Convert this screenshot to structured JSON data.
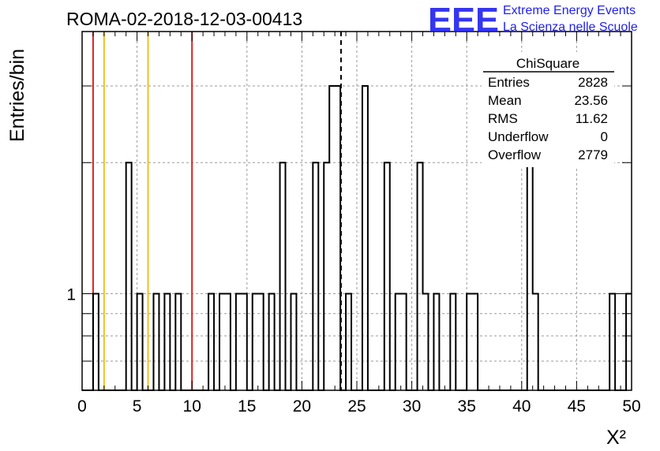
{
  "header": {
    "run_title": "ROMA-02-2018-12-03-00413",
    "logo_mark": "EEE",
    "logo_line1": "Extreme Energy Events",
    "logo_line2": "La Scienza nelle Scuole",
    "logo_color": "#1f1ff0"
  },
  "stats_box": {
    "title": "ChiSquare",
    "rows": [
      {
        "label": "Entries",
        "value": "2828"
      },
      {
        "label": "Mean",
        "value": "23.56"
      },
      {
        "label": "RMS",
        "value": "11.62"
      },
      {
        "label": "Underflow",
        "value": "0"
      },
      {
        "label": "Overflow",
        "value": "2779"
      }
    ]
  },
  "chart_data": {
    "type": "bar",
    "title": "ROMA-02-2018-12-03-00413",
    "xlabel": "X²",
    "ylabel": "Entries/bin",
    "xlim": [
      0,
      50
    ],
    "ylim": [
      0.6,
      4
    ],
    "yscale": "log",
    "grid": true,
    "bin_width": 0.5,
    "x_ticks": [
      "0",
      "5",
      "10",
      "15",
      "20",
      "25",
      "30",
      "35",
      "40",
      "45",
      "50"
    ],
    "y_tick_labels": [
      {
        "value": 1,
        "label": "1"
      }
    ],
    "bins": [
      {
        "x0": 1.0,
        "count": 1
      },
      {
        "x0": 4.0,
        "count": 2
      },
      {
        "x0": 5.0,
        "count": 1
      },
      {
        "x0": 6.5,
        "count": 1
      },
      {
        "x0": 7.5,
        "count": 1
      },
      {
        "x0": 8.5,
        "count": 1
      },
      {
        "x0": 11.5,
        "count": 1
      },
      {
        "x0": 12.5,
        "count": 1
      },
      {
        "x0": 13.0,
        "count": 1
      },
      {
        "x0": 14.0,
        "count": 1
      },
      {
        "x0": 14.5,
        "count": 1
      },
      {
        "x0": 15.5,
        "count": 1
      },
      {
        "x0": 16.0,
        "count": 1
      },
      {
        "x0": 17.0,
        "count": 1
      },
      {
        "x0": 18.0,
        "count": 2
      },
      {
        "x0": 19.0,
        "count": 1
      },
      {
        "x0": 21.0,
        "count": 2
      },
      {
        "x0": 22.0,
        "count": 2
      },
      {
        "x0": 22.5,
        "count": 3
      },
      {
        "x0": 23.0,
        "count": 3
      },
      {
        "x0": 24.0,
        "count": 1
      },
      {
        "x0": 25.5,
        "count": 3
      },
      {
        "x0": 27.5,
        "count": 2
      },
      {
        "x0": 28.5,
        "count": 1
      },
      {
        "x0": 29.0,
        "count": 1
      },
      {
        "x0": 30.5,
        "count": 2
      },
      {
        "x0": 31.0,
        "count": 1
      },
      {
        "x0": 32.0,
        "count": 1
      },
      {
        "x0": 33.5,
        "count": 1
      },
      {
        "x0": 35.0,
        "count": 1
      },
      {
        "x0": 35.5,
        "count": 1
      },
      {
        "x0": 40.5,
        "count": 2
      },
      {
        "x0": 41.0,
        "count": 1
      },
      {
        "x0": 48.0,
        "count": 1
      },
      {
        "x0": 49.5,
        "count": 1
      }
    ],
    "reference_lines": [
      {
        "x": 1.0,
        "color": "#dd2222",
        "style": "solid"
      },
      {
        "x": 2.0,
        "color": "#f0c020",
        "style": "solid"
      },
      {
        "x": 6.0,
        "color": "#f0c020",
        "style": "solid"
      },
      {
        "x": 10.0,
        "color": "#dd2222",
        "style": "solid"
      },
      {
        "x": 23.56,
        "color": "#000000",
        "style": "dashed"
      }
    ]
  }
}
